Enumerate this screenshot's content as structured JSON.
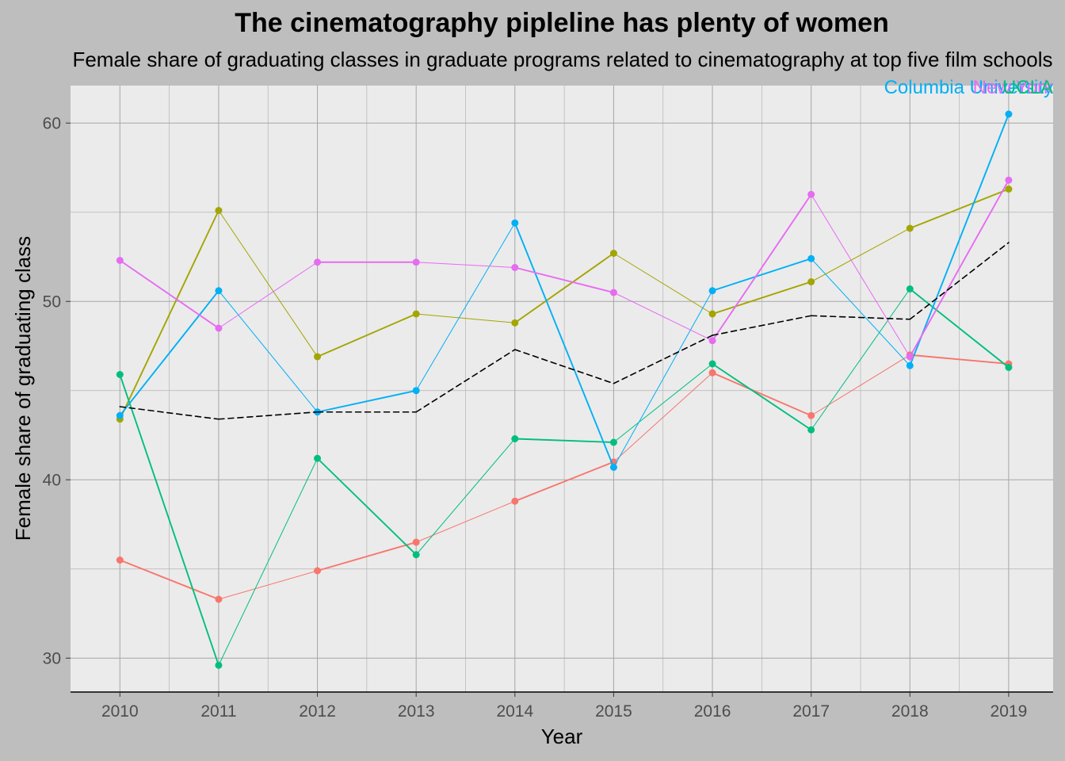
{
  "chart_data": {
    "type": "line",
    "title": "The cinematography pipleline has plenty of women",
    "subtitle": "Female share of graduating classes in graduate programs related to cinematography at top five film schools",
    "xlabel": "Year",
    "ylabel": "Female share of graduating class",
    "x": [
      2010,
      2011,
      2012,
      2013,
      2014,
      2015,
      2016,
      2017,
      2018,
      2019
    ],
    "xlim": [
      2009.5,
      2019.45
    ],
    "ylim": [
      28.1,
      62.1
    ],
    "y_ticks": [
      30,
      40,
      50,
      60
    ],
    "grid": true,
    "legend": "none",
    "series": [
      {
        "color": "#f8766d",
        "values": [
          35.5,
          33.3,
          34.9,
          36.5,
          38.8,
          41.0,
          46.0,
          43.6,
          47.0,
          46.5
        ]
      },
      {
        "color": "#a3a500",
        "values": [
          43.4,
          55.1,
          46.9,
          49.3,
          48.8,
          52.7,
          49.3,
          51.1,
          54.1,
          56.3
        ]
      },
      {
        "color": "#00bf7d",
        "values": [
          45.9,
          29.6,
          41.2,
          35.8,
          42.3,
          42.1,
          46.5,
          42.8,
          50.7,
          46.3
        ]
      },
      {
        "color": "#00b0f6",
        "values": [
          43.6,
          50.6,
          43.8,
          45.0,
          54.4,
          40.7,
          50.6,
          52.4,
          46.4,
          60.5
        ]
      },
      {
        "color": "#e76bf3",
        "values": [
          52.3,
          48.5,
          52.2,
          52.2,
          51.9,
          50.5,
          47.8,
          56.0,
          46.9,
          56.8
        ]
      },
      {
        "color": "#000000",
        "dashed": true,
        "values": [
          44.1,
          43.4,
          43.8,
          43.8,
          47.3,
          45.4,
          48.1,
          49.2,
          49.0,
          53.3
        ]
      }
    ],
    "annotations": [
      {
        "text": "Columbia University",
        "color": "#00b0f6"
      },
      {
        "text": "New York",
        "color": "#e76bf3"
      },
      {
        "text": "UCLA",
        "color": "#00bf7d"
      }
    ]
  }
}
